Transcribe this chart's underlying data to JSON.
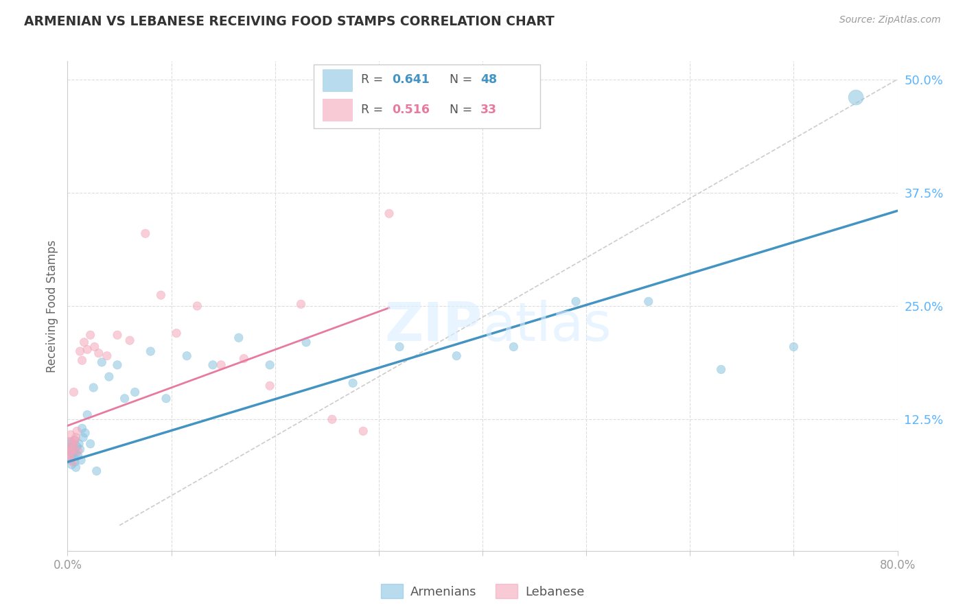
{
  "title": "ARMENIAN VS LEBANESE RECEIVING FOOD STAMPS CORRELATION CHART",
  "source": "Source: ZipAtlas.com",
  "ylabel": "Receiving Food Stamps",
  "xlim": [
    0.0,
    0.8
  ],
  "ylim": [
    -0.02,
    0.52
  ],
  "plot_ylim": [
    0.0,
    0.5
  ],
  "xticks": [
    0.0,
    0.1,
    0.2,
    0.3,
    0.4,
    0.5,
    0.6,
    0.7,
    0.8
  ],
  "xticklabels": [
    "0.0%",
    "",
    "",
    "",
    "",
    "",
    "",
    "",
    "80.0%"
  ],
  "ytick_right_labels": [
    "12.5%",
    "25.0%",
    "37.5%",
    "50.0%"
  ],
  "ytick_right_values": [
    0.125,
    0.25,
    0.375,
    0.5
  ],
  "armenian_color": "#89c4e1",
  "lebanese_color": "#f4a7bb",
  "armenian_line_color": "#4393c3",
  "lebanese_line_color": "#e87aa0",
  "watermark_color": "#daeeff",
  "title_color": "#333333",
  "right_tick_color": "#5ab4ff",
  "grid_color": "#dddddd",
  "armenians_x": [
    0.001,
    0.002,
    0.002,
    0.003,
    0.003,
    0.004,
    0.004,
    0.005,
    0.005,
    0.006,
    0.006,
    0.007,
    0.007,
    0.008,
    0.008,
    0.009,
    0.01,
    0.011,
    0.012,
    0.013,
    0.014,
    0.015,
    0.017,
    0.019,
    0.022,
    0.025,
    0.028,
    0.033,
    0.04,
    0.048,
    0.055,
    0.065,
    0.08,
    0.095,
    0.115,
    0.14,
    0.165,
    0.195,
    0.23,
    0.275,
    0.32,
    0.375,
    0.43,
    0.49,
    0.56,
    0.63,
    0.7,
    0.76
  ],
  "armenians_y": [
    0.095,
    0.09,
    0.085,
    0.1,
    0.08,
    0.095,
    0.075,
    0.088,
    0.093,
    0.085,
    0.092,
    0.078,
    0.102,
    0.088,
    0.072,
    0.095,
    0.085,
    0.098,
    0.092,
    0.08,
    0.115,
    0.105,
    0.11,
    0.13,
    0.098,
    0.16,
    0.068,
    0.188,
    0.172,
    0.185,
    0.148,
    0.155,
    0.2,
    0.148,
    0.195,
    0.185,
    0.215,
    0.185,
    0.21,
    0.165,
    0.205,
    0.195,
    0.205,
    0.255,
    0.255,
    0.18,
    0.205,
    0.48
  ],
  "armenians_size": [
    200,
    90,
    80,
    80,
    80,
    80,
    80,
    80,
    80,
    80,
    80,
    80,
    80,
    80,
    80,
    80,
    80,
    80,
    80,
    80,
    80,
    80,
    80,
    80,
    80,
    80,
    80,
    80,
    80,
    80,
    80,
    80,
    80,
    80,
    80,
    80,
    80,
    80,
    80,
    80,
    80,
    80,
    80,
    80,
    80,
    80,
    80,
    250
  ],
  "lebanese_x": [
    0.001,
    0.002,
    0.002,
    0.003,
    0.004,
    0.005,
    0.005,
    0.006,
    0.007,
    0.008,
    0.009,
    0.01,
    0.012,
    0.014,
    0.016,
    0.019,
    0.022,
    0.026,
    0.03,
    0.038,
    0.048,
    0.06,
    0.075,
    0.09,
    0.105,
    0.125,
    0.148,
    0.17,
    0.195,
    0.225,
    0.255,
    0.285,
    0.31
  ],
  "lebanese_y": [
    0.095,
    0.088,
    0.082,
    0.108,
    0.092,
    0.098,
    0.078,
    0.155,
    0.102,
    0.105,
    0.112,
    0.09,
    0.2,
    0.19,
    0.21,
    0.202,
    0.218,
    0.205,
    0.198,
    0.195,
    0.218,
    0.212,
    0.33,
    0.262,
    0.22,
    0.25,
    0.185,
    0.192,
    0.162,
    0.252,
    0.125,
    0.112,
    0.352
  ],
  "lebanese_size": [
    380,
    140,
    80,
    80,
    80,
    80,
    80,
    80,
    80,
    80,
    80,
    80,
    80,
    80,
    80,
    80,
    80,
    80,
    80,
    80,
    80,
    80,
    80,
    80,
    80,
    80,
    80,
    80,
    80,
    80,
    80,
    80,
    80
  ],
  "arm_line_x": [
    0.0,
    0.8
  ],
  "arm_line_y": [
    0.078,
    0.355
  ],
  "leb_line_x": [
    0.0,
    0.31
  ],
  "leb_line_y": [
    0.118,
    0.248
  ],
  "ref_line_x": [
    0.05,
    0.8
  ],
  "ref_line_y": [
    0.008,
    0.5
  ]
}
